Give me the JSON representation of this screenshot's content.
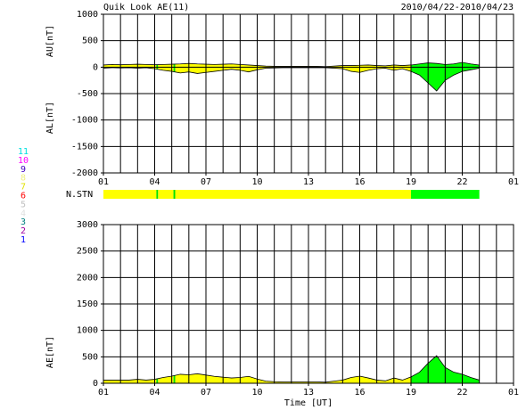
{
  "chart_data": [
    {
      "type": "area",
      "title": "Quik Look AE(11)",
      "date": "2010/04/22-2010/04/23",
      "ylabels": [
        "AU[nT]",
        "AL[nT]"
      ],
      "xlim": [
        0,
        24
      ],
      "xticks": [
        {
          "value": 0,
          "label": "01"
        },
        {
          "value": 3,
          "label": "04"
        },
        {
          "value": 6,
          "label": "07"
        },
        {
          "value": 9,
          "label": "10"
        },
        {
          "value": 12,
          "label": "13"
        },
        {
          "value": 15,
          "label": "16"
        },
        {
          "value": 18,
          "label": "19"
        },
        {
          "value": 21,
          "label": "22"
        },
        {
          "value": 24,
          "label": "01"
        }
      ],
      "ylim": [
        -2000,
        1000
      ],
      "yticks": [
        1000,
        500,
        0,
        -500,
        -1000,
        -1500,
        -2000
      ],
      "x": [
        0,
        0.5,
        1,
        1.5,
        2,
        2.5,
        3,
        3.5,
        4,
        4.5,
        5,
        5.5,
        6,
        6.5,
        7,
        7.5,
        8,
        8.5,
        9,
        9.5,
        10,
        10.5,
        11,
        11.5,
        12,
        12.5,
        13,
        13.5,
        14,
        14.5,
        15,
        15.5,
        16,
        16.5,
        17,
        17.5,
        18,
        18.5,
        19,
        19.5,
        20,
        20.5,
        21,
        21.5,
        22
      ],
      "series": [
        {
          "name": "AU",
          "color": "#000000",
          "values": [
            40,
            50,
            45,
            50,
            55,
            50,
            45,
            50,
            55,
            60,
            70,
            60,
            55,
            50,
            55,
            60,
            50,
            40,
            30,
            20,
            15,
            15,
            15,
            15,
            15,
            15,
            10,
            20,
            30,
            30,
            35,
            40,
            30,
            25,
            40,
            30,
            40,
            60,
            80,
            70,
            50,
            60,
            90,
            60,
            40
          ]
        },
        {
          "name": "AL",
          "color": "#000000",
          "values": [
            -20,
            -10,
            -15,
            -10,
            -20,
            -10,
            -30,
            -60,
            -80,
            -110,
            -90,
            -120,
            -100,
            -80,
            -60,
            -40,
            -60,
            -90,
            -50,
            -20,
            -15,
            -10,
            -10,
            -10,
            -10,
            -10,
            -10,
            -20,
            -30,
            -80,
            -100,
            -60,
            -30,
            -20,
            -60,
            -30,
            -80,
            -150,
            -300,
            -450,
            -250,
            -150,
            -80,
            -50,
            -20
          ]
        }
      ]
    },
    {
      "type": "stations",
      "label": "N.STN",
      "segments": [
        {
          "from": 0,
          "to": 3.1,
          "color": "#ffff00"
        },
        {
          "from": 3.1,
          "to": 3.2,
          "color": "#00e000"
        },
        {
          "from": 3.2,
          "to": 4.1,
          "color": "#ffff00"
        },
        {
          "from": 4.1,
          "to": 4.2,
          "color": "#00e000"
        },
        {
          "from": 4.2,
          "to": 18,
          "color": "#ffff00"
        },
        {
          "from": 18,
          "to": 22,
          "color": "#00ff00"
        }
      ],
      "legend": [
        {
          "label": "11",
          "color": "#00e0e0"
        },
        {
          "label": "10",
          "color": "#ff00ff"
        },
        {
          "label": "9",
          "color": "#4000c0"
        },
        {
          "label": "8",
          "color": "#f0f080"
        },
        {
          "label": "7",
          "color": "#e0e000"
        },
        {
          "label": "6",
          "color": "#ff0000"
        },
        {
          "label": "5",
          "color": "#c0c0c0"
        },
        {
          "label": "4",
          "color": "#e0e0e0"
        },
        {
          "label": "3",
          "color": "#008080"
        },
        {
          "label": "2",
          "color": "#a000a0"
        },
        {
          "label": "1",
          "color": "#0000ff"
        }
      ]
    },
    {
      "type": "area",
      "ylabels": [
        "AE[nT]"
      ],
      "xlabel": "Time [UT]",
      "xlim": [
        0,
        24
      ],
      "xticks": [
        {
          "value": 0,
          "label": "01"
        },
        {
          "value": 3,
          "label": "04"
        },
        {
          "value": 6,
          "label": "07"
        },
        {
          "value": 9,
          "label": "10"
        },
        {
          "value": 12,
          "label": "13"
        },
        {
          "value": 15,
          "label": "16"
        },
        {
          "value": 18,
          "label": "19"
        },
        {
          "value": 21,
          "label": "22"
        },
        {
          "value": 24,
          "label": "01"
        }
      ],
      "ylim": [
        0,
        3000
      ],
      "yticks": [
        3000,
        2500,
        2000,
        1500,
        1000,
        500,
        0
      ],
      "x": [
        0,
        0.5,
        1,
        1.5,
        2,
        2.5,
        3,
        3.5,
        4,
        4.5,
        5,
        5.5,
        6,
        6.5,
        7,
        7.5,
        8,
        8.5,
        9,
        9.5,
        10,
        10.5,
        11,
        11.5,
        12,
        12.5,
        13,
        13.5,
        14,
        14.5,
        15,
        15.5,
        16,
        16.5,
        17,
        17.5,
        18,
        18.5,
        19,
        19.5,
        20,
        20.5,
        21,
        21.5,
        22
      ],
      "series": [
        {
          "name": "AE",
          "color": "#000000",
          "values": [
            60,
            60,
            60,
            60,
            75,
            60,
            75,
            110,
            135,
            170,
            160,
            180,
            155,
            130,
            115,
            100,
            110,
            130,
            80,
            40,
            30,
            25,
            25,
            25,
            25,
            25,
            20,
            40,
            60,
            110,
            135,
            100,
            60,
            45,
            100,
            60,
            120,
            210,
            380,
            520,
            300,
            210,
            170,
            110,
            60
          ]
        }
      ]
    }
  ]
}
